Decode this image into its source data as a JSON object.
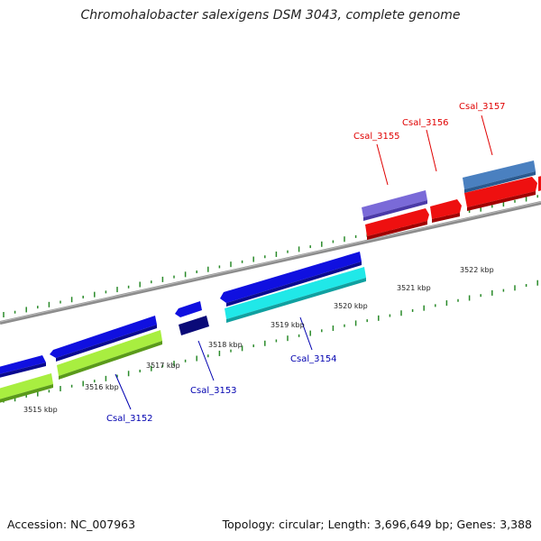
{
  "title": "Chromohalobacter salexigens DSM 3043, complete genome",
  "footer": {
    "accession": "Accession: NC_007963",
    "stats": "Topology: circular; Length: 3,696,649 bp; Genes: 3,388"
  },
  "ticks": [
    {
      "label": "3515 kbp"
    },
    {
      "label": "3516 kbp"
    },
    {
      "label": "3517 kbp"
    },
    {
      "label": "3518 kbp"
    },
    {
      "label": "3519 kbp"
    },
    {
      "label": "3520 kbp"
    },
    {
      "label": "3521 kbp"
    },
    {
      "label": "3522 kbp"
    }
  ],
  "genes": [
    {
      "label": "Csal_3152"
    },
    {
      "label": "Csal_3153"
    },
    {
      "label": "Csal_3154"
    },
    {
      "label": "Csal_3155"
    },
    {
      "label": "Csal_3156"
    },
    {
      "label": "Csal_3157"
    }
  ],
  "colors": {
    "forward_gene_label": "#0000b0",
    "reverse_gene_label": "#e00000",
    "backbone": "#8c8c8c",
    "tick": "#2a8a2a",
    "blue": "#1010e0",
    "navy": "#0a0a78",
    "lime": "#a8ee40",
    "cyan": "#20e8e8",
    "purple": "#7a6ad8",
    "steelblue": "#4a80c0",
    "red": "#ee1010"
  }
}
